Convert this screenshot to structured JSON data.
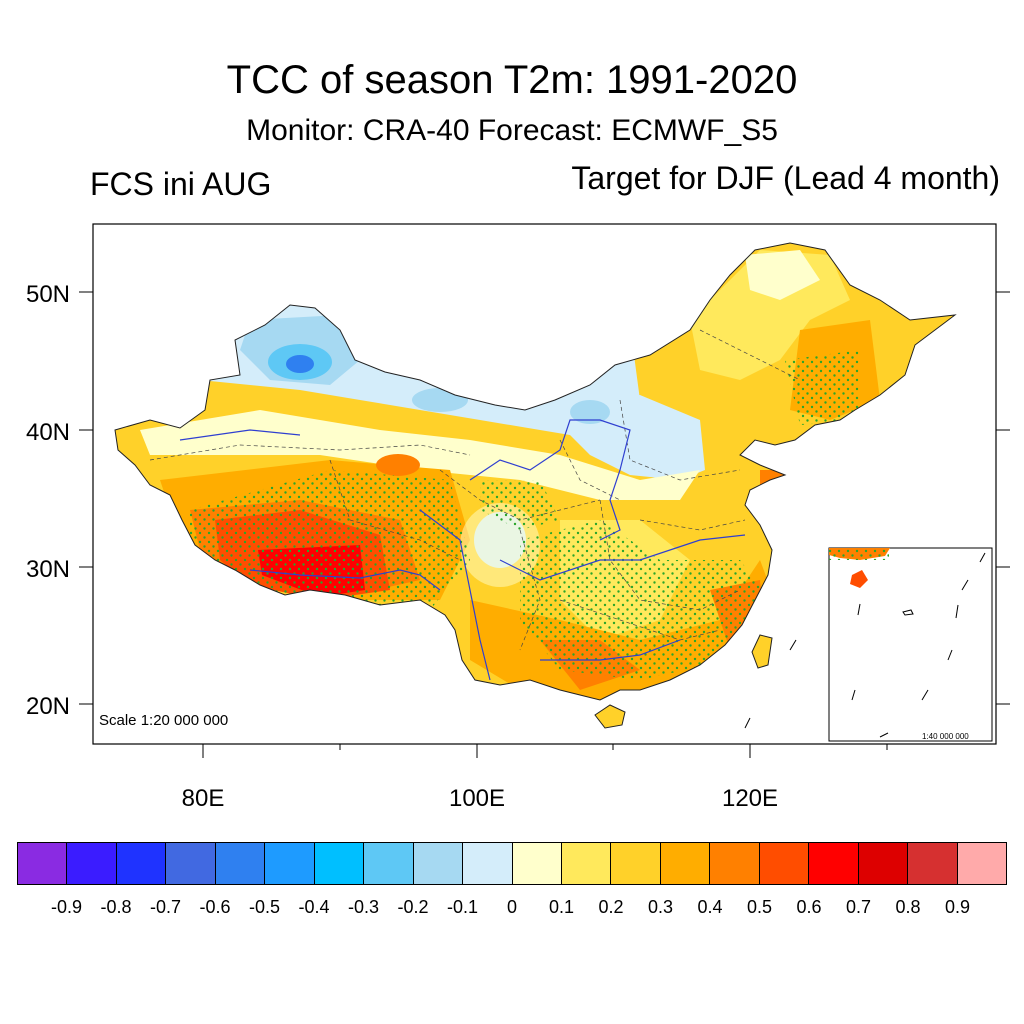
{
  "title": "TCC of season T2m: 1991-2020",
  "subtitle": "Monitor: CRA-40   Forecast: ECMWF_S5",
  "left_note": "FCS ini AUG",
  "right_note": "Target for DJF (Lead 4 month)",
  "map": {
    "lat_labels": [
      "50N",
      "40N",
      "30N",
      "20N"
    ],
    "lon_labels": [
      "80E",
      "100E",
      "120E"
    ],
    "scale_text": "Scale 1:20 000 000",
    "inset_scale_text": "1:40 000 000"
  },
  "colorbar": {
    "colors": [
      "#8a2be2",
      "#3b1cff",
      "#1f33ff",
      "#4169e1",
      "#2f80f0",
      "#1e9bff",
      "#00bfff",
      "#5ec8f5",
      "#a6d9f2",
      "#d4edfa",
      "#ffffcc",
      "#ffe95c",
      "#ffd129",
      "#ffad00",
      "#ff8000",
      "#ff4d00",
      "#ff0000",
      "#dd0000",
      "#d63030",
      "#ffaaaa"
    ],
    "labels": [
      "-0.9",
      "-0.8",
      "-0.7",
      "-0.6",
      "-0.5",
      "-0.4",
      "-0.3",
      "-0.2",
      "-0.1",
      "0",
      "0.1",
      "0.2",
      "0.3",
      "0.4",
      "0.5",
      "0.6",
      "0.7",
      "0.8",
      "0.9"
    ]
  }
}
